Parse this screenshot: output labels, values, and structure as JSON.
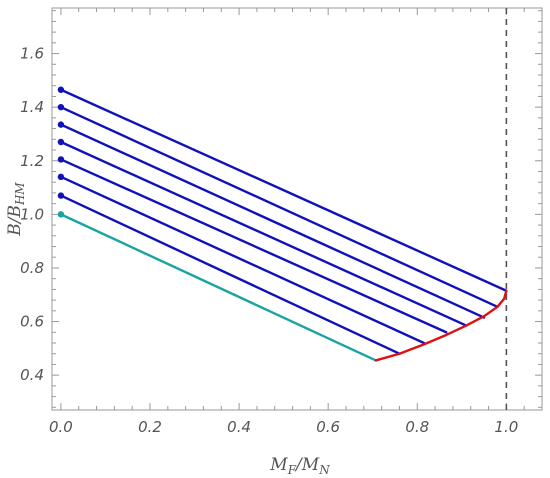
{
  "chart_data": {
    "type": "line",
    "title": "",
    "xlabel": {
      "main": "M",
      "sub1": "F",
      "mid": "/M",
      "sub2": "N"
    },
    "ylabel": {
      "main": "B/B",
      "sub": "HM"
    },
    "xlim": [
      -0.02,
      1.08
    ],
    "ylim": [
      0.27,
      1.77
    ],
    "x_ticks": [
      0.0,
      0.2,
      0.4,
      0.6,
      0.8,
      1.0
    ],
    "x_tick_labels": [
      "0.0",
      "0.2",
      "0.4",
      "0.6",
      "0.8",
      "1.0"
    ],
    "y_ticks": [
      0.4,
      0.6,
      0.8,
      1.0,
      1.2,
      1.4,
      1.6
    ],
    "y_tick_labels": [
      "0.4",
      "0.6",
      "0.8",
      "1.0",
      "1.2",
      "1.4",
      "1.6"
    ],
    "grid": false,
    "reference_line": {
      "x": 1.0,
      "style": "dashed",
      "color": "#555555"
    },
    "series": [
      {
        "color": "#1aa3a3",
        "start_point": true,
        "points": [
          [
            0.0,
            1.0
          ],
          [
            0.707,
            0.455
          ]
        ]
      },
      {
        "color": "#1111bb",
        "start_point": true,
        "points": [
          [
            0.0,
            1.07
          ],
          [
            0.76,
            0.48
          ]
        ]
      },
      {
        "color": "#1111bb",
        "start_point": true,
        "points": [
          [
            0.0,
            1.14
          ],
          [
            0.815,
            0.52
          ]
        ]
      },
      {
        "color": "#1111bb",
        "start_point": true,
        "points": [
          [
            0.0,
            1.205
          ],
          [
            0.865,
            0.56
          ]
        ]
      },
      {
        "color": "#1111bb",
        "start_point": true,
        "points": [
          [
            0.0,
            1.27
          ],
          [
            0.91,
            0.585
          ]
        ]
      },
      {
        "color": "#1111bb",
        "start_point": true,
        "points": [
          [
            0.0,
            1.335
          ],
          [
            0.95,
            0.615
          ]
        ]
      },
      {
        "color": "#1111bb",
        "start_point": true,
        "points": [
          [
            0.0,
            1.4
          ],
          [
            0.98,
            0.655
          ]
        ]
      },
      {
        "color": "#1111bb",
        "start_point": true,
        "points": [
          [
            0.0,
            1.465
          ],
          [
            1.0,
            0.715
          ]
        ]
      },
      {
        "color": "#dd1111",
        "start_point": false,
        "points": [
          [
            0.707,
            0.455
          ],
          [
            0.76,
            0.48
          ],
          [
            0.815,
            0.515
          ],
          [
            0.865,
            0.55
          ],
          [
            0.91,
            0.585
          ],
          [
            0.95,
            0.62
          ],
          [
            0.98,
            0.655
          ],
          [
            0.995,
            0.685
          ],
          [
            1.0,
            0.715
          ]
        ]
      }
    ]
  }
}
